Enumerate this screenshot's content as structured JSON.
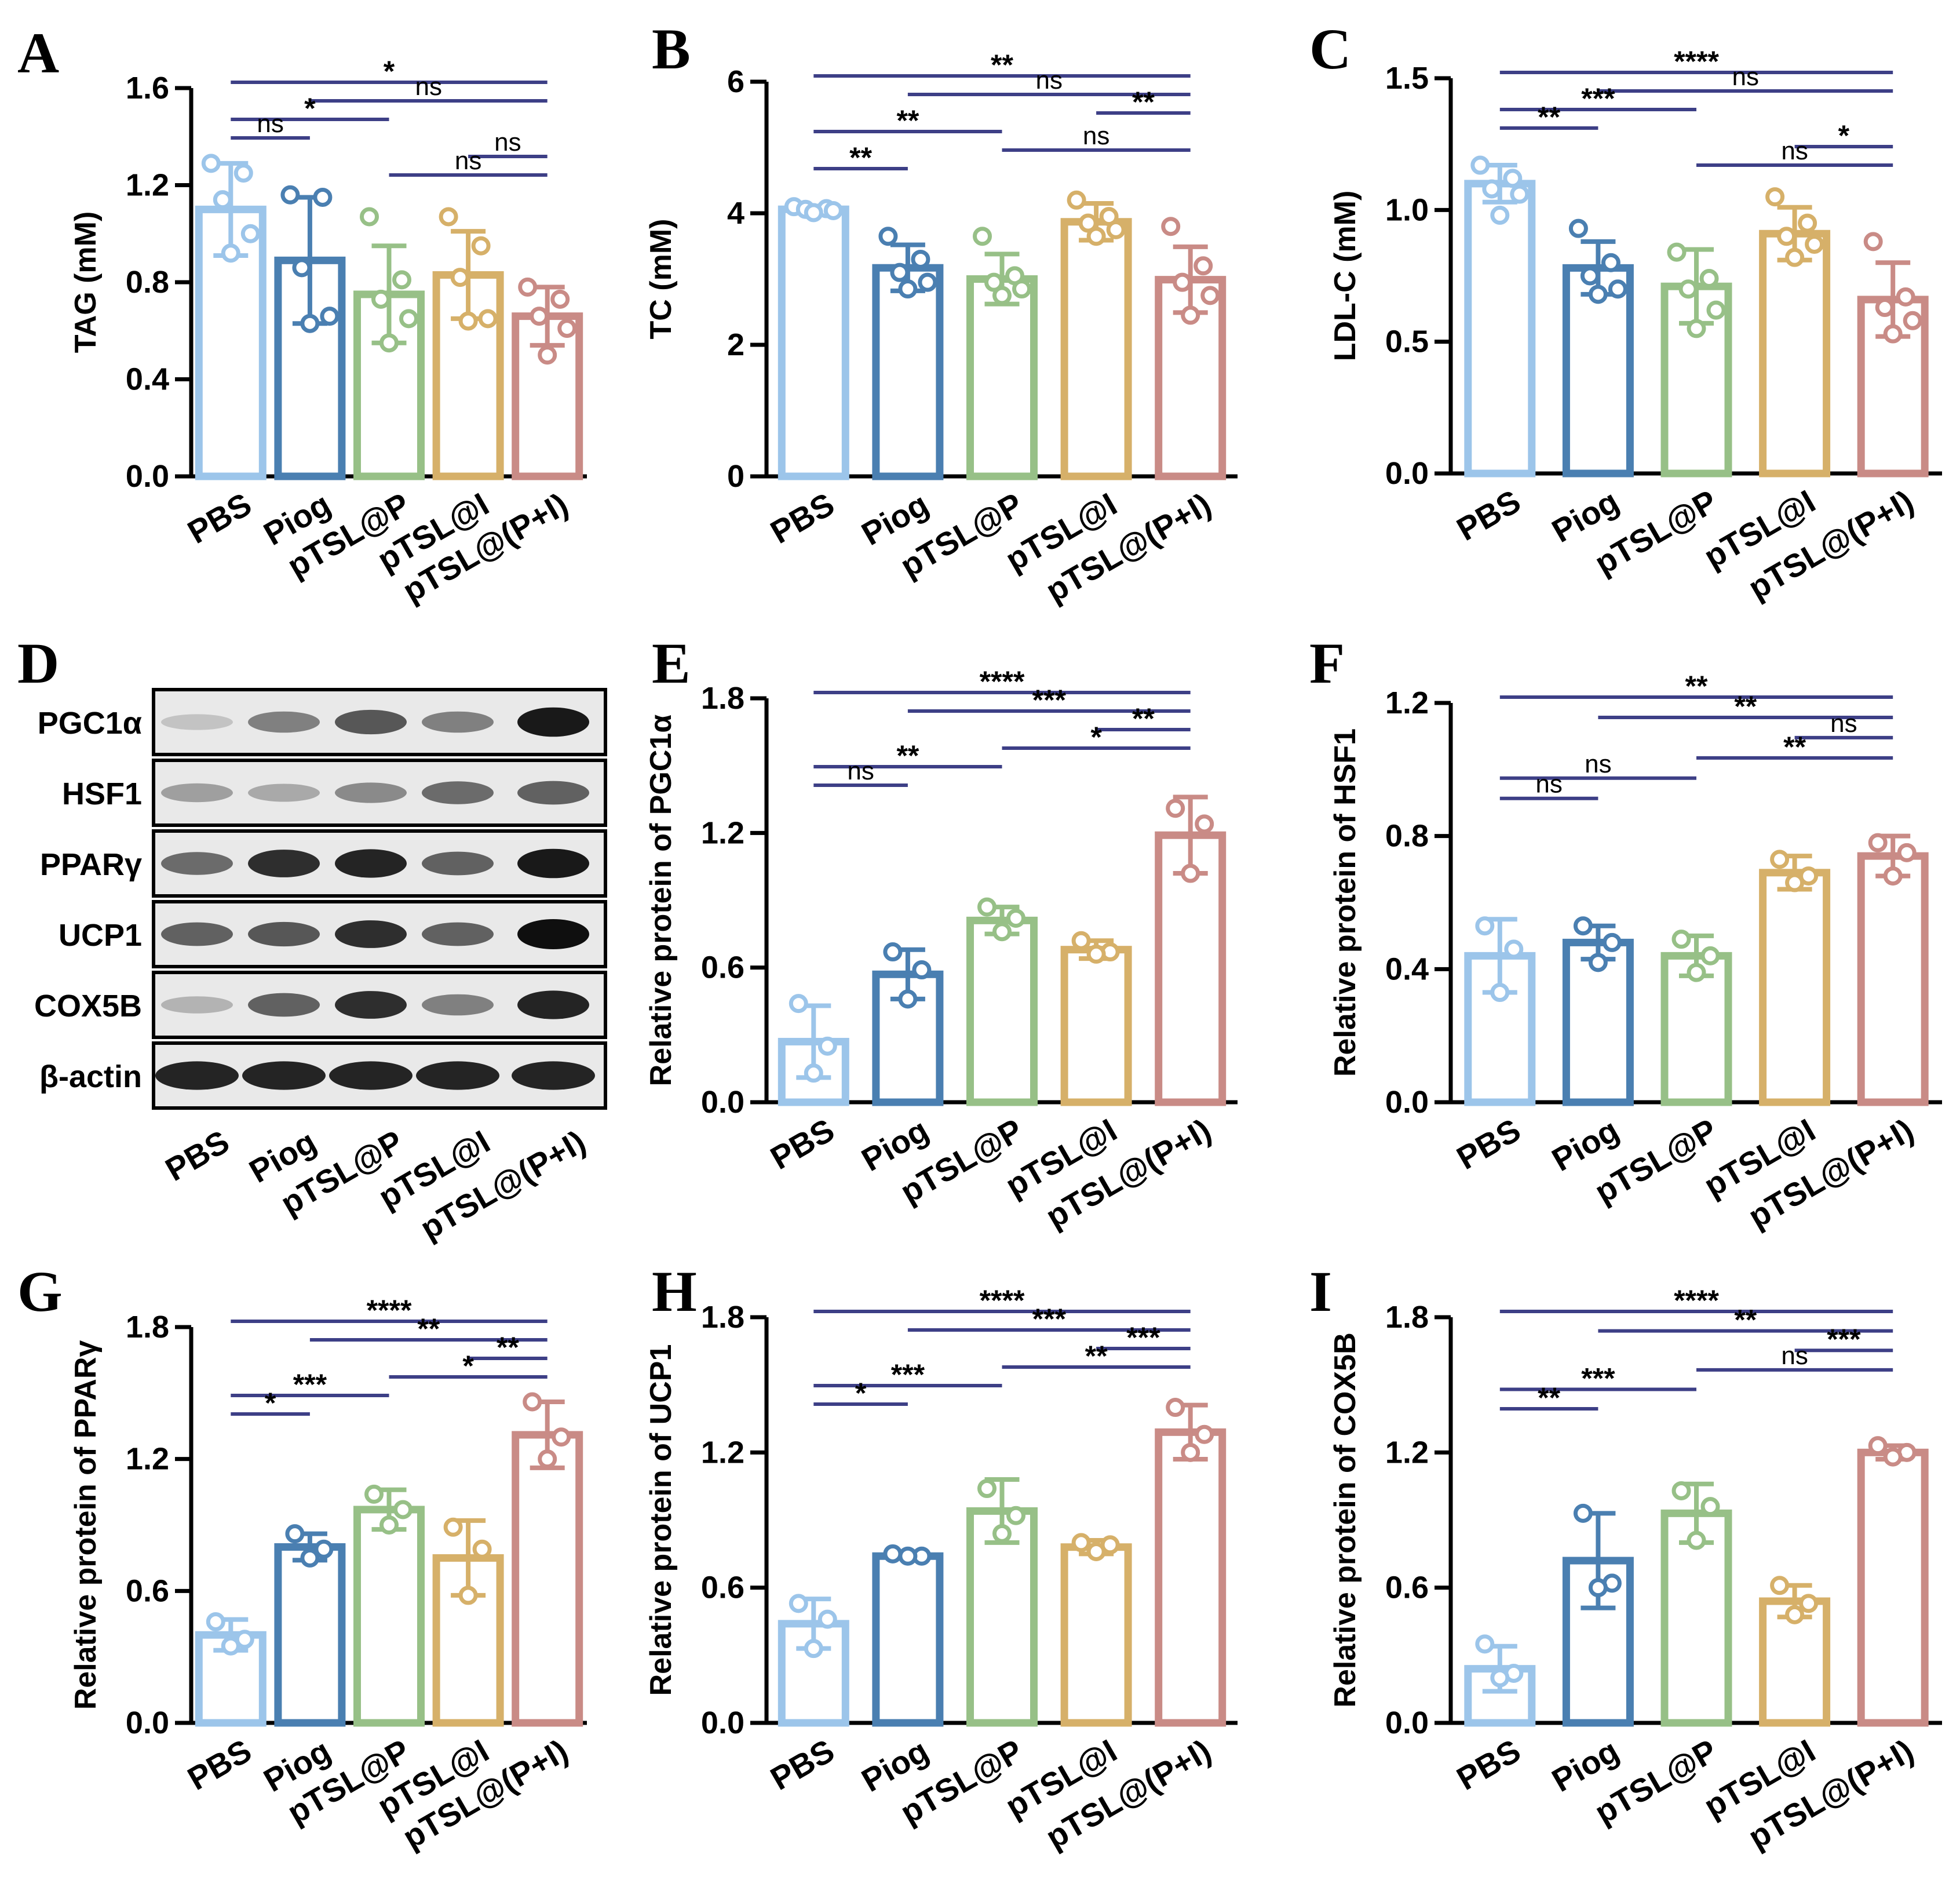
{
  "groups": [
    "PBS",
    "Piog",
    "pTSL@P",
    "pTSL@I",
    "pTSL@(P+I)"
  ],
  "colors": [
    "#9cc5ea",
    "#4a7fb1",
    "#97c087",
    "#d6b069",
    "#c98b86"
  ],
  "bracket_color": "#3d3f86",
  "chart_data": [
    {
      "panel": "A",
      "type": "bar",
      "ylabel": "TAG (mM)",
      "ylim": [
        0,
        1.6
      ],
      "yticks": [
        "0.0",
        "0.4",
        "0.8",
        "1.2",
        "1.6"
      ],
      "categories": [
        "PBS",
        "Piog",
        "pTSL@P",
        "pTSL@I",
        "pTSL@(P+I)"
      ],
      "values": [
        1.1,
        0.89,
        0.75,
        0.83,
        0.66
      ],
      "sd": [
        0.19,
        0.26,
        0.2,
        0.18,
        0.12
      ],
      "points": [
        [
          1.29,
          1.25,
          1.14,
          1.0,
          0.92
        ],
        [
          1.16,
          1.15,
          0.86,
          0.66,
          0.63
        ],
        [
          1.07,
          0.81,
          0.73,
          0.65,
          0.55
        ],
        [
          1.07,
          0.95,
          0.82,
          0.65,
          0.64
        ],
        [
          0.78,
          0.73,
          0.66,
          0.61,
          0.5
        ]
      ],
      "comparisons": [
        {
          "i": 0,
          "j": 4,
          "label": "*"
        },
        {
          "i": 1,
          "j": 4,
          "label": "ns"
        },
        {
          "i": 0,
          "j": 2,
          "label": "*"
        },
        {
          "i": 0,
          "j": 1,
          "label": "ns"
        },
        {
          "i": 3,
          "j": 4,
          "label": "ns"
        },
        {
          "i": 2,
          "j": 4,
          "label": "ns"
        }
      ]
    },
    {
      "panel": "B",
      "type": "bar",
      "ylabel": "TC (mM)",
      "ylim": [
        0,
        6
      ],
      "yticks": [
        "0",
        "2",
        "4",
        "6"
      ],
      "categories": [
        "PBS",
        "Piog",
        "pTSL@P",
        "pTSL@I",
        "pTSL@(P+I)"
      ],
      "values": [
        4.06,
        3.17,
        3.0,
        3.87,
        2.99
      ],
      "sd": [
        0.05,
        0.35,
        0.38,
        0.28,
        0.5
      ],
      "points": [
        [
          4.1,
          4.07,
          4.06,
          4.04,
          4.01
        ],
        [
          3.65,
          3.3,
          3.1,
          2.95,
          2.85
        ],
        [
          3.65,
          3.05,
          2.95,
          2.85,
          2.75
        ],
        [
          4.2,
          3.95,
          3.85,
          3.75,
          3.65
        ],
        [
          3.8,
          3.2,
          2.95,
          2.75,
          2.45
        ]
      ],
      "comparisons": [
        {
          "i": 0,
          "j": 4,
          "label": "**"
        },
        {
          "i": 1,
          "j": 4,
          "label": "ns"
        },
        {
          "i": 3,
          "j": 4,
          "label": "**"
        },
        {
          "i": 0,
          "j": 2,
          "label": "**"
        },
        {
          "i": 2,
          "j": 4,
          "label": "ns"
        },
        {
          "i": 0,
          "j": 1,
          "label": "**"
        }
      ]
    },
    {
      "panel": "C",
      "type": "bar",
      "ylabel": "LDL-C (mM)",
      "ylim": [
        0,
        1.5
      ],
      "yticks": [
        "0.0",
        "0.5",
        "1.0",
        "1.5"
      ],
      "categories": [
        "PBS",
        "Piog",
        "pTSL@P",
        "pTSL@I",
        "pTSL@(P+I)"
      ],
      "values": [
        1.1,
        0.78,
        0.71,
        0.91,
        0.66
      ],
      "sd": [
        0.07,
        0.1,
        0.14,
        0.1,
        0.14
      ],
      "points": [
        [
          1.17,
          1.12,
          1.08,
          1.06,
          0.98
        ],
        [
          0.93,
          0.8,
          0.75,
          0.7,
          0.68
        ],
        [
          0.84,
          0.74,
          0.7,
          0.62,
          0.55
        ],
        [
          1.05,
          0.95,
          0.9,
          0.87,
          0.82
        ],
        [
          0.88,
          0.67,
          0.63,
          0.58,
          0.53
        ]
      ],
      "comparisons": [
        {
          "i": 0,
          "j": 4,
          "label": "****"
        },
        {
          "i": 1,
          "j": 4,
          "label": "ns"
        },
        {
          "i": 0,
          "j": 2,
          "label": "***"
        },
        {
          "i": 0,
          "j": 1,
          "label": "**"
        },
        {
          "i": 3,
          "j": 4,
          "label": "*"
        },
        {
          "i": 2,
          "j": 4,
          "label": "ns"
        }
      ]
    },
    {
      "panel": "E",
      "type": "bar",
      "ylabel": "Relative protein of PGC1α",
      "ylim": [
        0,
        1.8
      ],
      "yticks": [
        "0.0",
        "0.6",
        "1.2",
        "1.8"
      ],
      "categories": [
        "PBS",
        "Piog",
        "pTSL@P",
        "pTSL@I",
        "pTSL@(P+I)"
      ],
      "values": [
        0.27,
        0.57,
        0.81,
        0.68,
        1.19
      ],
      "sd": [
        0.16,
        0.11,
        0.06,
        0.04,
        0.17
      ],
      "points": [
        [
          0.44,
          0.25,
          0.13
        ],
        [
          0.67,
          0.59,
          0.46
        ],
        [
          0.87,
          0.82,
          0.76
        ],
        [
          0.72,
          0.67,
          0.66
        ],
        [
          1.31,
          1.24,
          1.02
        ]
      ],
      "comparisons": [
        {
          "i": 0,
          "j": 4,
          "label": "****"
        },
        {
          "i": 1,
          "j": 4,
          "label": "***"
        },
        {
          "i": 3,
          "j": 4,
          "label": "**"
        },
        {
          "i": 2,
          "j": 4,
          "label": "*"
        },
        {
          "i": 0,
          "j": 2,
          "label": "**"
        },
        {
          "i": 0,
          "j": 1,
          "label": "ns"
        }
      ]
    },
    {
      "panel": "F",
      "type": "bar",
      "ylabel": "Relative protein of HSF1",
      "ylim": [
        0,
        1.2
      ],
      "yticks": [
        "0.0",
        "0.4",
        "0.8",
        "1.2"
      ],
      "categories": [
        "PBS",
        "Piog",
        "pTSL@P",
        "pTSL@I",
        "pTSL@(P+I)"
      ],
      "values": [
        0.44,
        0.48,
        0.44,
        0.69,
        0.74
      ],
      "sd": [
        0.11,
        0.05,
        0.06,
        0.05,
        0.06
      ],
      "points": [
        [
          0.53,
          0.46,
          0.33
        ],
        [
          0.53,
          0.48,
          0.42
        ],
        [
          0.49,
          0.44,
          0.39
        ],
        [
          0.73,
          0.68,
          0.66
        ],
        [
          0.78,
          0.75,
          0.68
        ]
      ],
      "comparisons": [
        {
          "i": 0,
          "j": 4,
          "label": "**"
        },
        {
          "i": 1,
          "j": 4,
          "label": "**"
        },
        {
          "i": 3,
          "j": 4,
          "label": "ns"
        },
        {
          "i": 2,
          "j": 4,
          "label": "**"
        },
        {
          "i": 0,
          "j": 2,
          "label": "ns"
        },
        {
          "i": 0,
          "j": 1,
          "label": "ns"
        }
      ]
    },
    {
      "panel": "G",
      "type": "bar",
      "ylabel": "Relative protein of PPARγ",
      "ylim": [
        0,
        1.8
      ],
      "yticks": [
        "0.0",
        "0.6",
        "1.2",
        "1.8"
      ],
      "categories": [
        "PBS",
        "Piog",
        "pTSL@P",
        "pTSL@I",
        "pTSL@(P+I)"
      ],
      "values": [
        0.4,
        0.8,
        0.97,
        0.75,
        1.31
      ],
      "sd": [
        0.07,
        0.06,
        0.09,
        0.17,
        0.15
      ],
      "points": [
        [
          0.46,
          0.38,
          0.35
        ],
        [
          0.86,
          0.79,
          0.75
        ],
        [
          1.04,
          0.97,
          0.9
        ],
        [
          0.89,
          0.79,
          0.58
        ],
        [
          1.46,
          1.3,
          1.2
        ]
      ],
      "comparisons": [
        {
          "i": 0,
          "j": 4,
          "label": "****"
        },
        {
          "i": 1,
          "j": 4,
          "label": "**"
        },
        {
          "i": 3,
          "j": 4,
          "label": "**"
        },
        {
          "i": 2,
          "j": 4,
          "label": "*"
        },
        {
          "i": 0,
          "j": 2,
          "label": "***"
        },
        {
          "i": 0,
          "j": 1,
          "label": "*"
        }
      ]
    },
    {
      "panel": "H",
      "type": "bar",
      "ylabel": "Relative protein of UCP1",
      "ylim": [
        0,
        1.8
      ],
      "yticks": [
        "0.0",
        "0.6",
        "1.2",
        "1.8"
      ],
      "categories": [
        "PBS",
        "Piog",
        "pTSL@P",
        "pTSL@I",
        "pTSL@(P+I)"
      ],
      "values": [
        0.44,
        0.74,
        0.94,
        0.78,
        1.29
      ],
      "sd": [
        0.11,
        0.01,
        0.14,
        0.03,
        0.12
      ],
      "points": [
        [
          0.53,
          0.46,
          0.33
        ],
        [
          0.75,
          0.74,
          0.74
        ],
        [
          1.04,
          0.92,
          0.84
        ],
        [
          0.8,
          0.79,
          0.76
        ],
        [
          1.4,
          1.28,
          1.2
        ]
      ],
      "comparisons": [
        {
          "i": 0,
          "j": 4,
          "label": "****"
        },
        {
          "i": 1,
          "j": 4,
          "label": "***"
        },
        {
          "i": 3,
          "j": 4,
          "label": "***"
        },
        {
          "i": 2,
          "j": 4,
          "label": "**"
        },
        {
          "i": 0,
          "j": 2,
          "label": "***"
        },
        {
          "i": 0,
          "j": 1,
          "label": "*"
        }
      ]
    },
    {
      "panel": "I",
      "type": "bar",
      "ylabel": "Relative protein of COX5B",
      "ylim": [
        0,
        1.8
      ],
      "yticks": [
        "0.0",
        "0.6",
        "1.2",
        "1.8"
      ],
      "categories": [
        "PBS",
        "Piog",
        "pTSL@P",
        "pTSL@I",
        "pTSL@(P+I)"
      ],
      "values": [
        0.24,
        0.72,
        0.93,
        0.54,
        1.2
      ],
      "sd": [
        0.1,
        0.21,
        0.13,
        0.07,
        0.03
      ],
      "points": [
        [
          0.35,
          0.22,
          0.2
        ],
        [
          0.93,
          0.62,
          0.6
        ],
        [
          1.03,
          0.96,
          0.81
        ],
        [
          0.61,
          0.53,
          0.48
        ],
        [
          1.23,
          1.2,
          1.18
        ]
      ],
      "comparisons": [
        {
          "i": 0,
          "j": 4,
          "label": "****"
        },
        {
          "i": 1,
          "j": 4,
          "label": "**"
        },
        {
          "i": 3,
          "j": 4,
          "label": "***"
        },
        {
          "i": 2,
          "j": 4,
          "label": "ns"
        },
        {
          "i": 0,
          "j": 2,
          "label": "***"
        },
        {
          "i": 0,
          "j": 1,
          "label": "**"
        }
      ]
    }
  ],
  "western_blot": {
    "panel": "D",
    "proteins": [
      "PGC1α",
      "HSF1",
      "PPARγ",
      "UCP1",
      "COX5B",
      "β-actin"
    ],
    "lanes": [
      "PBS",
      "Piog",
      "pTSL@P",
      "pTSL@I",
      "pTSL@(P+I)"
    ],
    "band_intensity": [
      [
        0.12,
        0.45,
        0.65,
        0.45,
        0.95
      ],
      [
        0.3,
        0.25,
        0.4,
        0.55,
        0.6
      ],
      [
        0.55,
        0.85,
        0.9,
        0.6,
        0.95
      ],
      [
        0.6,
        0.65,
        0.85,
        0.6,
        1.0
      ],
      [
        0.2,
        0.6,
        0.85,
        0.45,
        0.9
      ],
      [
        0.9,
        0.9,
        0.9,
        0.9,
        0.9
      ]
    ]
  }
}
